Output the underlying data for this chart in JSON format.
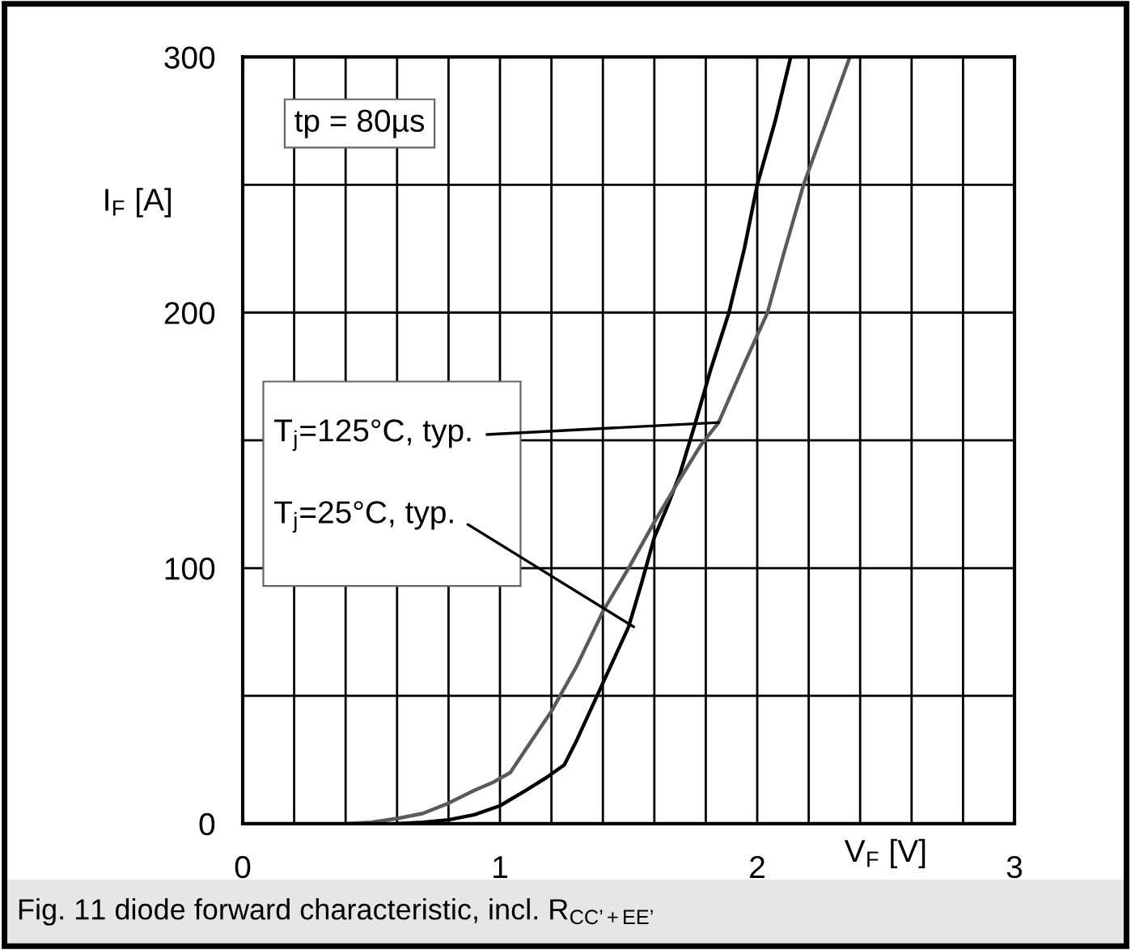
{
  "chart_data": {
    "type": "line",
    "xlabel": "V$_{F}$ [V]",
    "ylabel": "I$_{F}$ [A]",
    "series": [
      {
        "color": "#000000",
        "x": [
          0.6,
          0.7,
          0.8,
          0.9,
          1.0,
          1.1,
          1.18,
          1.25,
          1.3,
          1.35,
          1.4,
          1.45,
          1.5,
          1.55,
          1.6,
          1.65,
          1.7,
          1.76,
          1.82,
          1.89,
          1.95,
          2.0,
          2.07,
          2.13
        ],
        "values": [
          0,
          0.5,
          1.5,
          3.5,
          7,
          13,
          18,
          23,
          33,
          44,
          55,
          66,
          77,
          94,
          112,
          124,
          137,
          157,
          178,
          200,
          225,
          250,
          275,
          300
        ]
      },
      {
        "color": "#5a5a5a",
        "x": [
          0.4,
          0.5,
          0.6,
          0.7,
          0.8,
          0.9,
          0.97,
          1.04,
          1.1,
          1.2,
          1.3,
          1.4,
          1.5,
          1.6,
          1.7,
          1.78,
          1.85,
          1.95,
          2.04,
          2.1,
          2.18,
          2.27,
          2.36
        ],
        "values": [
          0,
          0.5,
          2,
          4,
          8,
          13,
          16,
          20,
          29,
          44,
          62,
          83,
          100,
          118,
          135,
          148,
          157,
          180,
          200,
          222,
          250,
          275,
          300
        ]
      }
    ],
    "xlim": [
      0,
      3
    ],
    "ylim": [
      0,
      300
    ],
    "xticks": [
      0,
      {
        "value": 0.2,
        "label": null
      },
      {
        "value": 0.4,
        "label": null
      },
      {
        "value": 0.6,
        "label": null
      },
      {
        "value": 0.8,
        "label": null
      },
      1,
      {
        "value": 1.2,
        "label": null
      },
      {
        "value": 1.4,
        "label": null
      },
      {
        "value": 1.6,
        "label": null
      },
      {
        "value": 1.8,
        "label": null
      },
      2,
      {
        "value": 2.2,
        "label": null
      },
      {
        "value": 2.4,
        "label": null
      },
      {
        "value": 2.6,
        "label": null
      },
      {
        "value": 2.8,
        "label": null
      },
      3
    ],
    "yticks": [
      0,
      {
        "value": 50,
        "label": null
      },
      100,
      {
        "value": 150,
        "label": null
      },
      200,
      {
        "value": 250,
        "label": null
      },
      300
    ],
    "grid": true,
    "line_style": "solid",
    "marker": "none",
    "annotations": [
      "tp = 80µs",
      {
        "text": "T$_{j}$=125°C, typ.",
        "x": 1.85,
        "y": 157
      },
      {
        "text": "T$_{j}$=25°C, typ.",
        "x": 1.52,
        "y": 77
      },
      "Fig. 11 diode forward characteristic, incl. R$_{CC’+EE’}$"
    ]
  }
}
